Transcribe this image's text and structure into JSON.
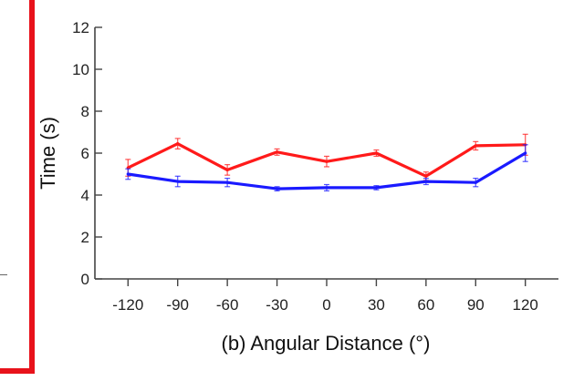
{
  "chart_data": {
    "type": "line",
    "x": [
      -120,
      -90,
      -60,
      -30,
      0,
      30,
      60,
      90,
      120
    ],
    "xtick_labels": [
      "-120",
      "-90",
      "-60",
      "-30",
      "0",
      "30",
      "60",
      "90",
      "120"
    ],
    "yticks": [
      0,
      2,
      4,
      6,
      8,
      10,
      12
    ],
    "ylim": [
      0,
      12
    ],
    "xlim": [
      -140,
      140
    ],
    "xlabel": "(b) Angular Distance (°)",
    "ylabel": "Time (s)",
    "series": [
      {
        "color": "#ff1a1a",
        "values": [
          5.3,
          6.45,
          5.2,
          6.05,
          5.6,
          6.0,
          4.9,
          6.35,
          6.4
        ],
        "errors": [
          0.4,
          0.25,
          0.25,
          0.15,
          0.25,
          0.15,
          0.2,
          0.2,
          0.5
        ]
      },
      {
        "color": "#1a1aff",
        "values": [
          5.0,
          4.65,
          4.6,
          4.3,
          4.35,
          4.35,
          4.65,
          4.6,
          6.0
        ],
        "errors": [
          0.25,
          0.25,
          0.2,
          0.1,
          0.15,
          0.1,
          0.15,
          0.2,
          0.4
        ]
      }
    ],
    "grid": false
  },
  "decor": {
    "frame_color": "#e8121b"
  }
}
